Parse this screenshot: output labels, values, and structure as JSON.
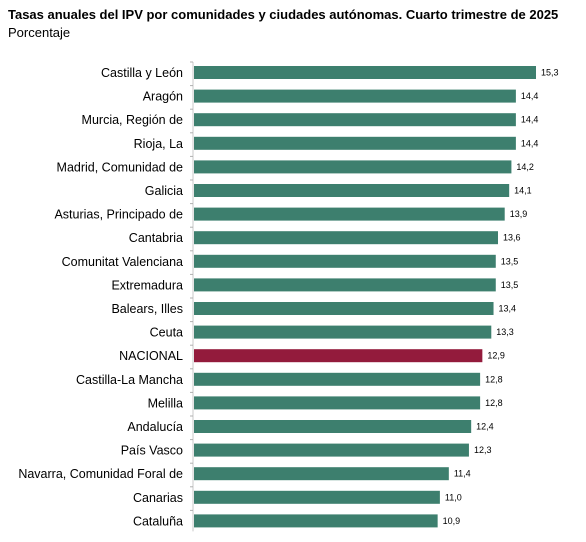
{
  "chart_data": {
    "type": "bar",
    "orientation": "horizontal",
    "title": "Tasas anuales del IPV por comunidades y ciudades autónomas. Cuarto trimestre de 2025",
    "subtitle": "Porcentaje",
    "categories": [
      "Castilla y León",
      "Aragón",
      "Murcia, Región de",
      "Rioja, La",
      "Madrid, Comunidad de",
      "Galicia",
      "Asturias, Principado de",
      "Cantabria",
      "Comunitat Valenciana",
      "Extremadura",
      "Balears, Illes",
      "Ceuta",
      "NACIONAL",
      "Castilla-La Mancha",
      "Melilla",
      "Andalucía",
      "País Vasco",
      "Navarra, Comunidad Foral de",
      "Canarias",
      "Cataluña"
    ],
    "values": [
      15.3,
      14.4,
      14.4,
      14.4,
      14.2,
      14.1,
      13.9,
      13.6,
      13.5,
      13.5,
      13.4,
      13.3,
      12.9,
      12.8,
      12.8,
      12.4,
      12.3,
      11.4,
      11.0,
      10.9
    ],
    "value_labels": [
      "15,3",
      "14,4",
      "14,4",
      "14,4",
      "14,2",
      "14,1",
      "13,9",
      "13,6",
      "13,5",
      "13,5",
      "13,4",
      "13,3",
      "12,9",
      "12,8",
      "12,8",
      "12,4",
      "12,3",
      "11,4",
      "11,0",
      "10,9"
    ],
    "xlim": [
      0,
      15.3
    ],
    "highlight_category": "NACIONAL",
    "colors": {
      "bar": "#3d7f6e",
      "highlight": "#931b3c"
    },
    "grid": false,
    "legend": "none"
  }
}
